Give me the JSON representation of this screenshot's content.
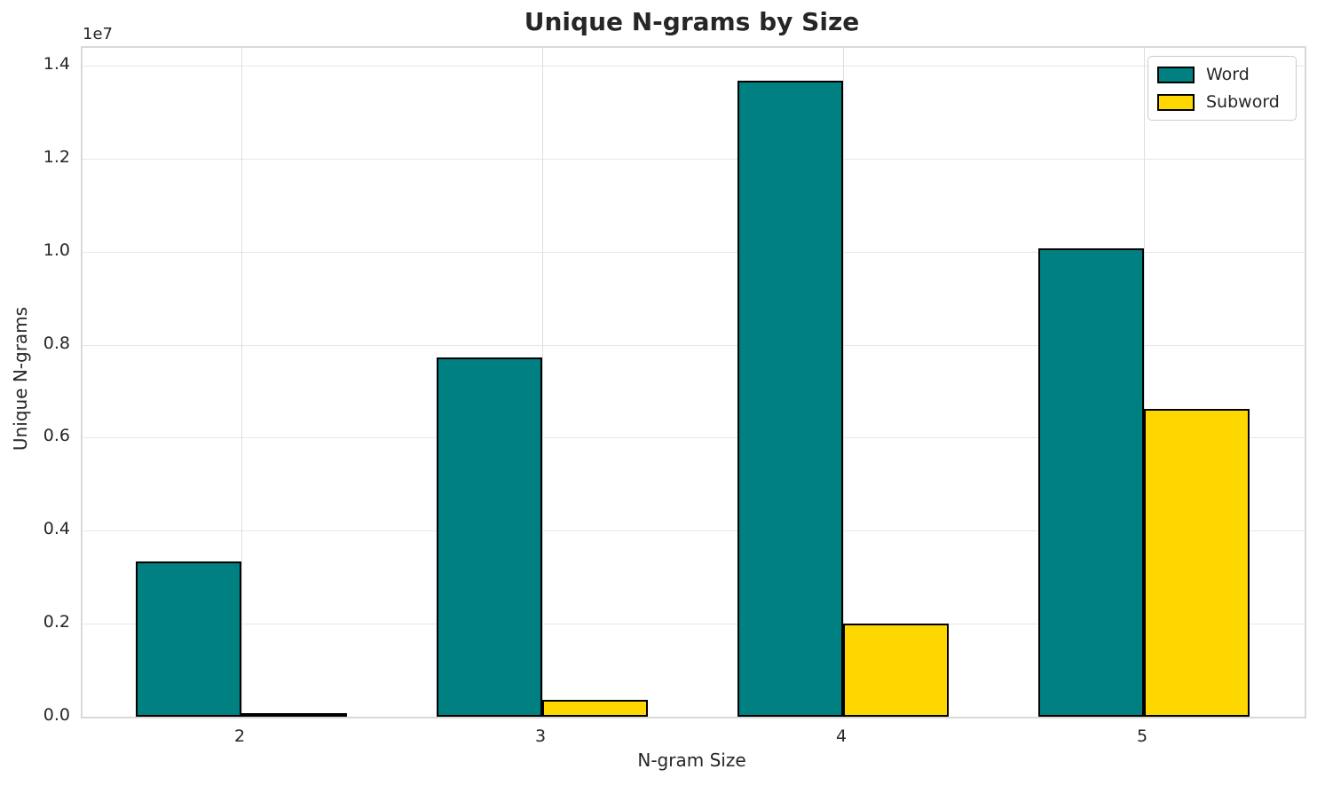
{
  "chart_data": {
    "type": "bar",
    "title": "Unique N-grams by Size",
    "xlabel": "N-gram Size",
    "ylabel": "Unique N-grams",
    "offset_text": "1e7",
    "categories": [
      "2",
      "3",
      "4",
      "5"
    ],
    "series": [
      {
        "name": "Word",
        "color": "#008080",
        "values": [
          3330000,
          7720000,
          13670000,
          10070000
        ]
      },
      {
        "name": "Subword",
        "color": "#FFD700",
        "values": [
          50000,
          370000,
          2000000,
          6610000
        ]
      }
    ],
    "ylim": [
      0,
      14380000
    ],
    "yticks": [
      0,
      2000000,
      4000000,
      6000000,
      8000000,
      10000000,
      12000000,
      14000000
    ],
    "ytick_labels": [
      "0.0",
      "0.2",
      "0.4",
      "0.6",
      "0.8",
      "1.0",
      "1.2",
      "1.4"
    ],
    "grid": true,
    "legend_position": "upper right",
    "bar_edge_color": "#000000",
    "background_color": "#ffffff"
  }
}
